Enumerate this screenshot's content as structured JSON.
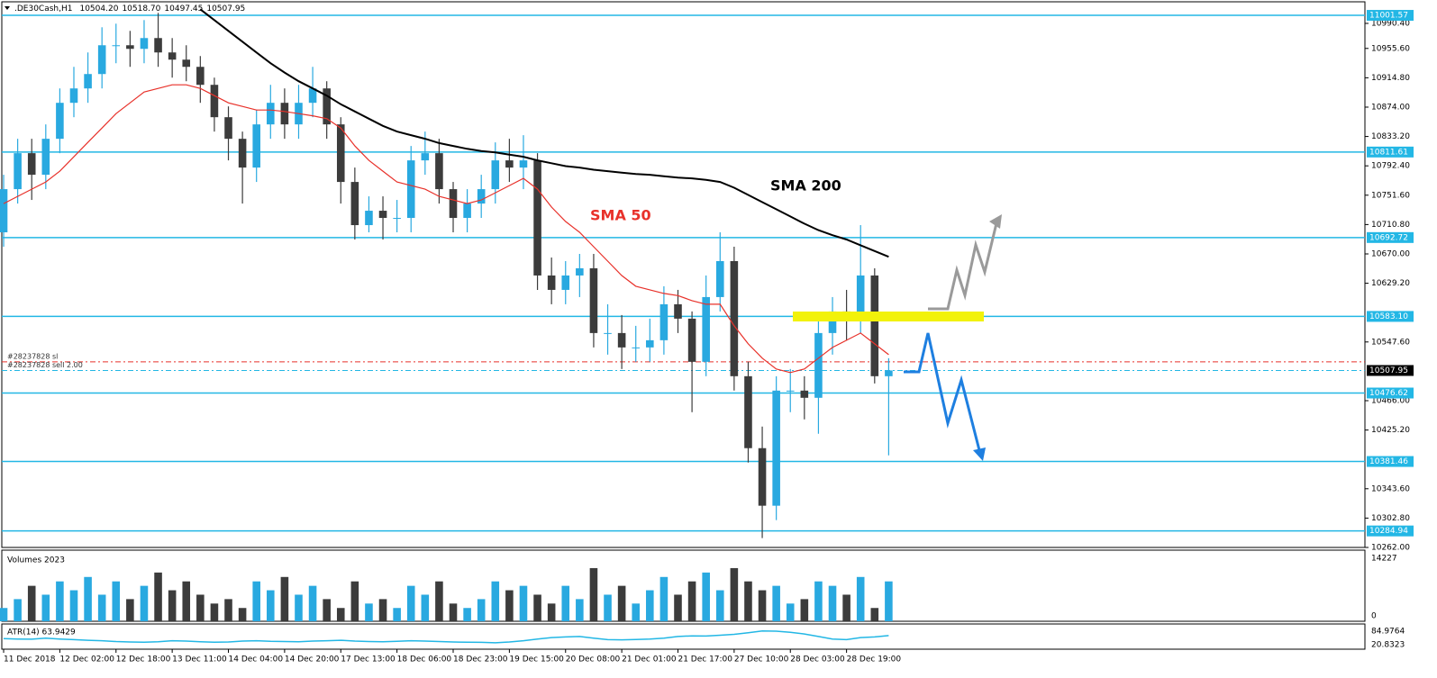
{
  "chart_data": {
    "type": "candlestick",
    "title": ".DE30Cash,H1",
    "quote": [
      {
        "value": 10504.2,
        "label": "10504.20"
      },
      {
        "value": 10518.7,
        "label": "10518.70"
      },
      10497.45,
      10507.95
    ],
    "up_color": "#29a9e0",
    "down_color": "#3c3c3c",
    "level_color": "#23b7e5",
    "xlim": [
      -0.13,
      96.9
    ],
    "ylim": [
      10262,
      11020.4
    ],
    "x": [
      0,
      1,
      2,
      3,
      4,
      5,
      6,
      7,
      8,
      9,
      10,
      11,
      12,
      13,
      14,
      15,
      16,
      17,
      18,
      19,
      20,
      21,
      22,
      23,
      24,
      25,
      26,
      27,
      28,
      29,
      30,
      31,
      32,
      33,
      34,
      35,
      36,
      37,
      38,
      39,
      40,
      41,
      42,
      43,
      44,
      45,
      46,
      47,
      48,
      49,
      50,
      51,
      52,
      53,
      54,
      55,
      56,
      57,
      58,
      59,
      60,
      61,
      62,
      63
    ],
    "open": [
      10700,
      10760,
      10810,
      10780,
      10830,
      10880,
      10900,
      10920,
      10960,
      10960,
      10955,
      10970,
      10950,
      10940,
      10930,
      10905,
      10860,
      10830,
      10790,
      10850,
      10880,
      10850,
      10880,
      10900,
      10850,
      10770,
      10710,
      10730,
      10720,
      10720,
      10800,
      10810,
      10760,
      10720,
      10740,
      10760,
      10800,
      10790,
      10800,
      10640,
      10620,
      10640,
      10650,
      10560,
      10560,
      10540,
      10540,
      10550,
      10600,
      10580,
      10520,
      10610,
      10660,
      10500,
      10400,
      10320,
      10480,
      10480,
      10470,
      10560,
      10590,
      10580,
      10640,
      10500
    ],
    "high": [
      10780,
      10830,
      10830,
      10850,
      10900,
      10930,
      10950,
      10985,
      10990,
      10980,
      10995,
      11005,
      10970,
      10960,
      10945,
      10915,
      10875,
      10840,
      10870,
      10905,
      10900,
      10905,
      10930,
      10910,
      10860,
      10790,
      10750,
      10750,
      10745,
      10820,
      10840,
      10830,
      10770,
      10760,
      10780,
      10825,
      10830,
      10835,
      10810,
      10665,
      10660,
      10670,
      10670,
      10600,
      10585,
      10570,
      10580,
      10625,
      10620,
      10590,
      10640,
      10700,
      10680,
      10520,
      10430,
      10500,
      10510,
      10500,
      10580,
      10610,
      10620,
      10710,
      10650,
      10525
    ],
    "low": [
      10680,
      10740,
      10745,
      10760,
      10810,
      10860,
      10880,
      10900,
      10935,
      10930,
      10935,
      10930,
      10915,
      10910,
      10880,
      10840,
      10800,
      10740,
      10770,
      10830,
      10830,
      10830,
      10860,
      10830,
      10740,
      10690,
      10700,
      10690,
      10700,
      10700,
      10780,
      10740,
      10700,
      10700,
      10720,
      10740,
      10770,
      10760,
      10620,
      10600,
      10600,
      10610,
      10540,
      10530,
      10510,
      10520,
      10520,
      10530,
      10560,
      10450,
      10500,
      10590,
      10480,
      10380,
      10275,
      10300,
      10450,
      10440,
      10420,
      10530,
      10550,
      10560,
      10490,
      10390
    ],
    "close": [
      10760,
      10810,
      10780,
      10830,
      10880,
      10900,
      10920,
      10960,
      10960,
      10955,
      10970,
      10950,
      10940,
      10930,
      10905,
      10860,
      10830,
      10790,
      10850,
      10880,
      10850,
      10880,
      10900,
      10850,
      10770,
      10710,
      10730,
      10720,
      10720,
      10800,
      10810,
      10760,
      10720,
      10740,
      10760,
      10800,
      10790,
      10800,
      10640,
      10620,
      10640,
      10650,
      10560,
      10560,
      10540,
      10540,
      10550,
      10600,
      10580,
      10520,
      10610,
      10660,
      10500,
      10400,
      10320,
      10480,
      10480,
      10470,
      10560,
      10590,
      10580,
      10640,
      10500,
      10508
    ],
    "series": [
      {
        "name": "SMA 50",
        "color": "#e8312a",
        "values": [
          10740,
          10750,
          10760,
          10770,
          10785,
          10805,
          10825,
          10845,
          10865,
          10880,
          10895,
          10900,
          10905,
          10905,
          10900,
          10890,
          10880,
          10875,
          10870,
          10870,
          10868,
          10865,
          10862,
          10858,
          10845,
          10820,
          10800,
          10785,
          10770,
          10765,
          10760,
          10750,
          10745,
          10740,
          10745,
          10755,
          10765,
          10775,
          10760,
          10735,
          10715,
          10700,
          10680,
          10660,
          10640,
          10625,
          10620,
          10615,
          10612,
          10605,
          10600,
          10600,
          10570,
          10545,
          10525,
          10510,
          10505,
          10510,
          10525,
          10540,
          10550,
          10560,
          10545,
          10530
        ]
      },
      {
        "name": "SMA 200",
        "color": "#000000",
        "values": [
          null,
          null,
          null,
          null,
          null,
          null,
          null,
          null,
          null,
          null,
          null,
          null,
          null,
          null,
          11010,
          10995,
          10980,
          10965,
          10950,
          10935,
          10922,
          10910,
          10900,
          10890,
          10878,
          10868,
          10858,
          10848,
          10840,
          10835,
          10830,
          10824,
          10820,
          10816,
          10813,
          10811,
          10808,
          10805,
          10800,
          10796,
          10792,
          10790,
          10787,
          10785,
          10783,
          10781,
          10780,
          10778,
          10776,
          10775,
          10773,
          10770,
          10762,
          10752,
          10742,
          10732,
          10722,
          10712,
          10703,
          10696,
          10690,
          10682,
          10674,
          10666
        ]
      }
    ],
    "yticks": [
      {
        "value": 10990.4,
        "label": "10990.40"
      },
      {
        "value": 10955.6,
        "label": "10955.60"
      },
      {
        "value": 10914.8,
        "label": "10914.80"
      },
      {
        "value": 10874,
        "label": "10874.00"
      },
      {
        "value": 10833.2,
        "label": "10833.20"
      },
      {
        "value": 10792.4,
        "label": "10792.40"
      },
      {
        "value": 10751.6,
        "label": "10751.60"
      },
      {
        "value": 10710.8,
        "label": "10710.80"
      },
      {
        "value": 10670,
        "label": "10670.00"
      },
      {
        "value": 10629.2,
        "label": "10629.20"
      },
      {
        "value": 10547.6,
        "label": "10547.60"
      },
      {
        "value": 10466,
        "label": "10466.00"
      },
      {
        "value": 10425.2,
        "label": "10425.20"
      },
      {
        "value": 10343.6,
        "label": "10343.60"
      },
      {
        "value": 10302.8,
        "label": "10302.80"
      },
      {
        "value": 10262,
        "label": "10262.00"
      }
    ],
    "levels": [
      11001.57,
      10811.61,
      10692.72,
      {
        "value": 10583.1,
        "label": "10583.10"
      },
      10476.62,
      10381.46,
      10284.94
    ],
    "current_price": 10507.95,
    "orders": [
      {
        "label": "#28237828 sl",
        "value": 10520,
        "color": "#e8312a"
      },
      {
        "label": "#28237828 sell 2.00",
        "value": 10507.95,
        "color": "#23b7e5"
      }
    ],
    "xticks": [
      {
        "value": 0,
        "label": "11 Dec 2018"
      },
      {
        "value": 4,
        "label": "12 Dec 02:00"
      },
      {
        "value": 8,
        "label": "12 Dec 18:00"
      },
      {
        "value": 12,
        "label": "13 Dec 11:00"
      },
      {
        "value": 16,
        "label": "14 Dec 04:00"
      },
      {
        "value": 20,
        "label": "14 Dec 20:00"
      },
      {
        "value": 24,
        "label": "17 Dec 13:00"
      },
      {
        "value": 28,
        "label": "18 Dec 06:00"
      },
      {
        "value": 32,
        "label": "18 Dec 23:00"
      },
      {
        "value": 36,
        "label": "19 Dec 15:00"
      },
      {
        "value": 40,
        "label": "20 Dec 08:00"
      },
      {
        "value": 44,
        "label": "21 Dec 01:00"
      },
      {
        "value": 48,
        "label": "21 Dec 17:00"
      },
      {
        "value": 52,
        "label": "27 Dec 10:00"
      },
      {
        "value": 56,
        "label": "28 Dec 03:00"
      },
      {
        "value": 60,
        "label": "28 Dec 19:00"
      }
    ],
    "volume": {
      "label": "Volumes 2023",
      "ylim": [
        0,
        15850
      ],
      "yticks": [
        14227,
        0
      ],
      "values": [
        3000,
        5000,
        8000,
        6000,
        9000,
        7000,
        10000,
        6000,
        9000,
        5000,
        8000,
        11000,
        7000,
        9000,
        6000,
        4000,
        5000,
        3000,
        9000,
        7000,
        10000,
        6000,
        8000,
        5000,
        3000,
        9000,
        4000,
        5000,
        3000,
        8000,
        6000,
        9000,
        4000,
        3000,
        5000,
        9000,
        7000,
        8000,
        6000,
        4000,
        8000,
        5000,
        12000,
        6000,
        8000,
        4000,
        7000,
        10000,
        6000,
        9000,
        11000,
        7000,
        12000,
        9000,
        7000,
        8000,
        4000,
        5000,
        9000,
        8000,
        6000,
        10000,
        3000,
        9000
      ]
    },
    "atr": {
      "label": "ATR(14) 63.9429",
      "color": "#23b7e5",
      "ylim": [
        4,
        115
      ],
      "yticks": [
        84.9764,
        20.8323
      ],
      "values": [
        50,
        48,
        47,
        52,
        48,
        45,
        42,
        40,
        36,
        34,
        33,
        35,
        40,
        38,
        35,
        33,
        34,
        38,
        40,
        37,
        36,
        35,
        38,
        40,
        42,
        38,
        36,
        35,
        37,
        40,
        38,
        36,
        34,
        33,
        32,
        30,
        34,
        40,
        48,
        55,
        58,
        60,
        52,
        45,
        44,
        46,
        48,
        52,
        60,
        63,
        62,
        66,
        70,
        78,
        86,
        85,
        80,
        72,
        60,
        48,
        45,
        55,
        58,
        64
      ]
    }
  }
}
